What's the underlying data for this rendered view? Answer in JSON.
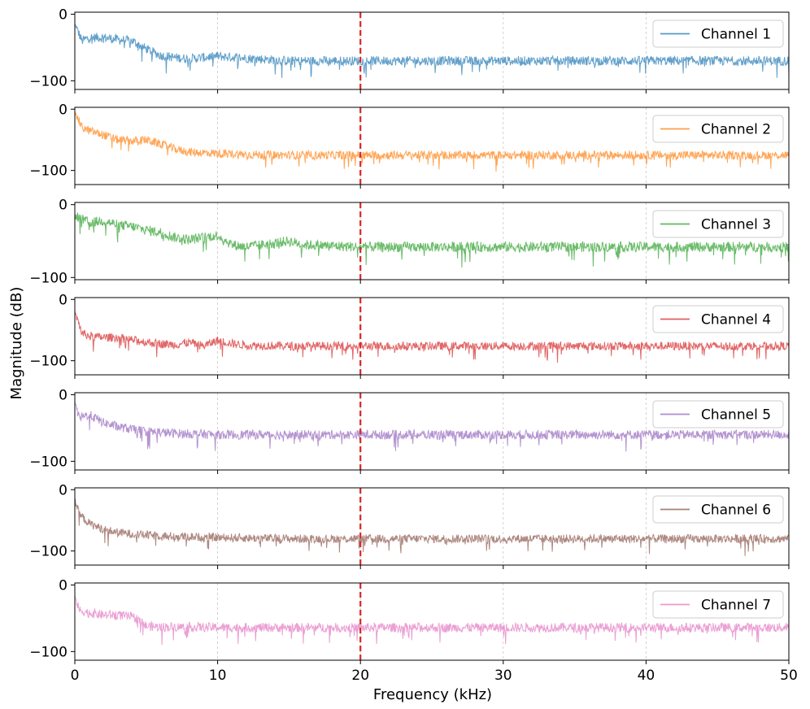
{
  "chart_data": {
    "type": "line",
    "xlabel": "Frequency (kHz)",
    "ylabel": "Magnitude (dB)",
    "xlim": [
      0,
      50
    ],
    "xticks": [
      0,
      10,
      20,
      30,
      40,
      50
    ],
    "xtick_labels": [
      "0",
      "10",
      "20",
      "30",
      "40",
      "50"
    ],
    "yticks": [
      0,
      -100
    ],
    "ytick_labels": [
      "0",
      "−100"
    ],
    "grid": "x-dashed",
    "reference_line": {
      "x": 20,
      "color": "#d62728",
      "style": "dashed"
    },
    "legend_position": "upper right",
    "panels": [
      {
        "name": "Channel 1",
        "color": "#1f77b4",
        "ylim": [
          -113,
          3
        ],
        "points": [
          [
            0,
            -15
          ],
          [
            0.5,
            -40
          ],
          [
            1,
            -35
          ],
          [
            2,
            -35
          ],
          [
            3,
            -38
          ],
          [
            4,
            -40
          ],
          [
            5,
            -52
          ],
          [
            6,
            -62
          ],
          [
            7,
            -65
          ],
          [
            8,
            -67
          ],
          [
            10,
            -63
          ],
          [
            12,
            -66
          ],
          [
            15,
            -70
          ],
          [
            20,
            -70
          ],
          [
            25,
            -70
          ],
          [
            30,
            -70
          ],
          [
            35,
            -70
          ],
          [
            40,
            -70
          ],
          [
            45,
            -70
          ],
          [
            50,
            -70
          ]
        ]
      },
      {
        "name": "Channel 2",
        "color": "#ff7f0e",
        "ylim": [
          -123,
          3
        ],
        "points": [
          [
            0,
            -5
          ],
          [
            0.5,
            -30
          ],
          [
            1,
            -35
          ],
          [
            2,
            -42
          ],
          [
            3,
            -50
          ],
          [
            4,
            -52
          ],
          [
            5,
            -50
          ],
          [
            6,
            -57
          ],
          [
            7,
            -65
          ],
          [
            8,
            -70
          ],
          [
            10,
            -72
          ],
          [
            12,
            -74
          ],
          [
            15,
            -75
          ],
          [
            20,
            -75
          ],
          [
            25,
            -75
          ],
          [
            30,
            -75
          ],
          [
            35,
            -75
          ],
          [
            40,
            -75
          ],
          [
            45,
            -75
          ],
          [
            50,
            -75
          ]
        ]
      },
      {
        "name": "Channel 3",
        "color": "#2ca02c",
        "ylim": [
          -103,
          3
        ],
        "points": [
          [
            0,
            -15
          ],
          [
            1,
            -25
          ],
          [
            2,
            -22
          ],
          [
            3,
            -28
          ],
          [
            4,
            -30
          ],
          [
            5,
            -35
          ],
          [
            6,
            -38
          ],
          [
            7,
            -45
          ],
          [
            8,
            -48
          ],
          [
            9,
            -45
          ],
          [
            10,
            -42
          ],
          [
            11,
            -55
          ],
          [
            12,
            -58
          ],
          [
            15,
            -50
          ],
          [
            16,
            -55
          ],
          [
            20,
            -58
          ],
          [
            25,
            -58
          ],
          [
            30,
            -58
          ],
          [
            35,
            -58
          ],
          [
            40,
            -58
          ],
          [
            45,
            -58
          ],
          [
            50,
            -58
          ]
        ]
      },
      {
        "name": "Channel 4",
        "color": "#d62728",
        "ylim": [
          -123,
          3
        ],
        "points": [
          [
            0,
            -20
          ],
          [
            0.5,
            -55
          ],
          [
            1,
            -60
          ],
          [
            2,
            -62
          ],
          [
            3,
            -62
          ],
          [
            4,
            -66
          ],
          [
            5,
            -70
          ],
          [
            6,
            -72
          ],
          [
            7,
            -74
          ],
          [
            8,
            -70
          ],
          [
            9,
            -76
          ],
          [
            10,
            -67
          ],
          [
            11,
            -72
          ],
          [
            12,
            -75
          ],
          [
            15,
            -76
          ],
          [
            20,
            -76
          ],
          [
            25,
            -76
          ],
          [
            30,
            -76
          ],
          [
            35,
            -76
          ],
          [
            40,
            -76
          ],
          [
            45,
            -76
          ],
          [
            50,
            -76
          ]
        ]
      },
      {
        "name": "Channel 5",
        "color": "#9467bd",
        "ylim": [
          -113,
          3
        ],
        "points": [
          [
            0,
            -10
          ],
          [
            0.3,
            -35
          ],
          [
            1,
            -30
          ],
          [
            2,
            -42
          ],
          [
            3,
            -48
          ],
          [
            4,
            -52
          ],
          [
            5,
            -55
          ],
          [
            7,
            -58
          ],
          [
            10,
            -60
          ],
          [
            15,
            -60
          ],
          [
            20,
            -60
          ],
          [
            25,
            -60
          ],
          [
            30,
            -60
          ],
          [
            35,
            -60
          ],
          [
            40,
            -60
          ],
          [
            45,
            -60
          ],
          [
            50,
            -60
          ]
        ]
      },
      {
        "name": "Channel 6",
        "color": "#8c564b",
        "ylim": [
          -123,
          3
        ],
        "points": [
          [
            0,
            -15
          ],
          [
            0.3,
            -40
          ],
          [
            1,
            -55
          ],
          [
            2,
            -65
          ],
          [
            3,
            -70
          ],
          [
            4,
            -72
          ],
          [
            5,
            -74
          ],
          [
            7,
            -76
          ],
          [
            10,
            -78
          ],
          [
            15,
            -80
          ],
          [
            20,
            -80
          ],
          [
            25,
            -80
          ],
          [
            30,
            -80
          ],
          [
            35,
            -80
          ],
          [
            40,
            -80
          ],
          [
            45,
            -80
          ],
          [
            50,
            -80
          ]
        ]
      },
      {
        "name": "Channel 7",
        "color": "#e377c2",
        "ylim": [
          -113,
          3
        ],
        "points": [
          [
            0,
            -15
          ],
          [
            0.3,
            -38
          ],
          [
            1,
            -42
          ],
          [
            2,
            -45
          ],
          [
            3,
            -45
          ],
          [
            4,
            -48
          ],
          [
            4.5,
            -52
          ],
          [
            5,
            -62
          ],
          [
            6,
            -63
          ],
          [
            8,
            -63
          ],
          [
            10,
            -64
          ],
          [
            15,
            -64
          ],
          [
            20,
            -64
          ],
          [
            25,
            -64
          ],
          [
            30,
            -64
          ],
          [
            35,
            -64
          ],
          [
            40,
            -64
          ],
          [
            45,
            -64
          ],
          [
            50,
            -64
          ]
        ]
      }
    ]
  }
}
